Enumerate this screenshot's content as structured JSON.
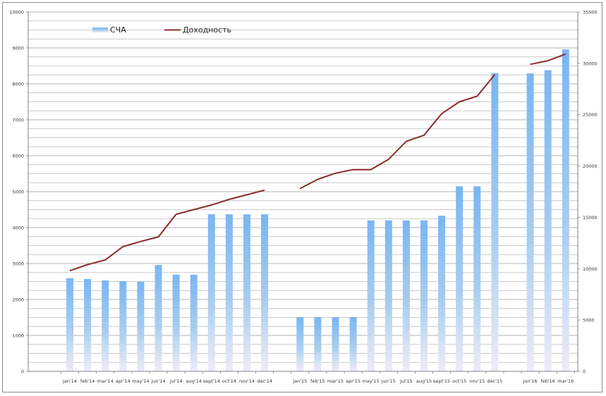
{
  "chart_data": {
    "type": "bar",
    "categories": [
      "jan'14",
      "feb'14",
      "mar'14",
      "apr'14",
      "may'14",
      "jun'14",
      "jul'14",
      "aug'14",
      "sept'14",
      "oct'14",
      "nov'14",
      "dec'14",
      "",
      "jan'15",
      "feb'15",
      "mar'15",
      "apr'15",
      "may'15",
      "jun'15",
      "jul'15",
      "aug'15",
      "sept'15",
      "oct'15",
      "nov'15",
      "dec'15",
      "",
      "jan'16",
      "feb'16",
      "mar'16"
    ],
    "series": [
      {
        "name": "СЧА",
        "type": "bar",
        "axis": "left",
        "color": "#7ab8f0",
        "values": [
          2590,
          2570,
          2530,
          2510,
          2490,
          2960,
          2690,
          2690,
          4370,
          4370,
          4370,
          4370,
          null,
          1510,
          1510,
          1510,
          1510,
          4200,
          4200,
          4200,
          4200,
          4330,
          5150,
          5150,
          8300,
          null,
          8290,
          8380,
          8960
        ]
      },
      {
        "name": "Доходность",
        "type": "line",
        "axis": "right",
        "color": "#8b2a2a",
        "values": [
          9800,
          10400,
          10850,
          12150,
          12650,
          13100,
          15300,
          15750,
          16200,
          16750,
          17200,
          17650,
          null,
          17800,
          18700,
          19300,
          19650,
          19650,
          20650,
          22400,
          23000,
          25100,
          26250,
          26800,
          28900,
          null,
          29900,
          30250,
          30900
        ]
      }
    ],
    "y_left": {
      "ylim": [
        0,
        10000
      ],
      "ticks": [
        "0",
        "1000",
        "2000",
        "3000",
        "4000",
        "5000",
        "6000",
        "7000",
        "8000",
        "9000",
        "10000"
      ]
    },
    "y_right": {
      "ylim": [
        0,
        35000
      ],
      "ticks": [
        "0",
        "5000",
        "10000",
        "15000",
        "20000",
        "25000",
        "30000",
        "35000"
      ]
    },
    "grid": true,
    "legend": {
      "position": "top-left",
      "items": [
        "СЧА",
        "Доходность"
      ]
    }
  }
}
